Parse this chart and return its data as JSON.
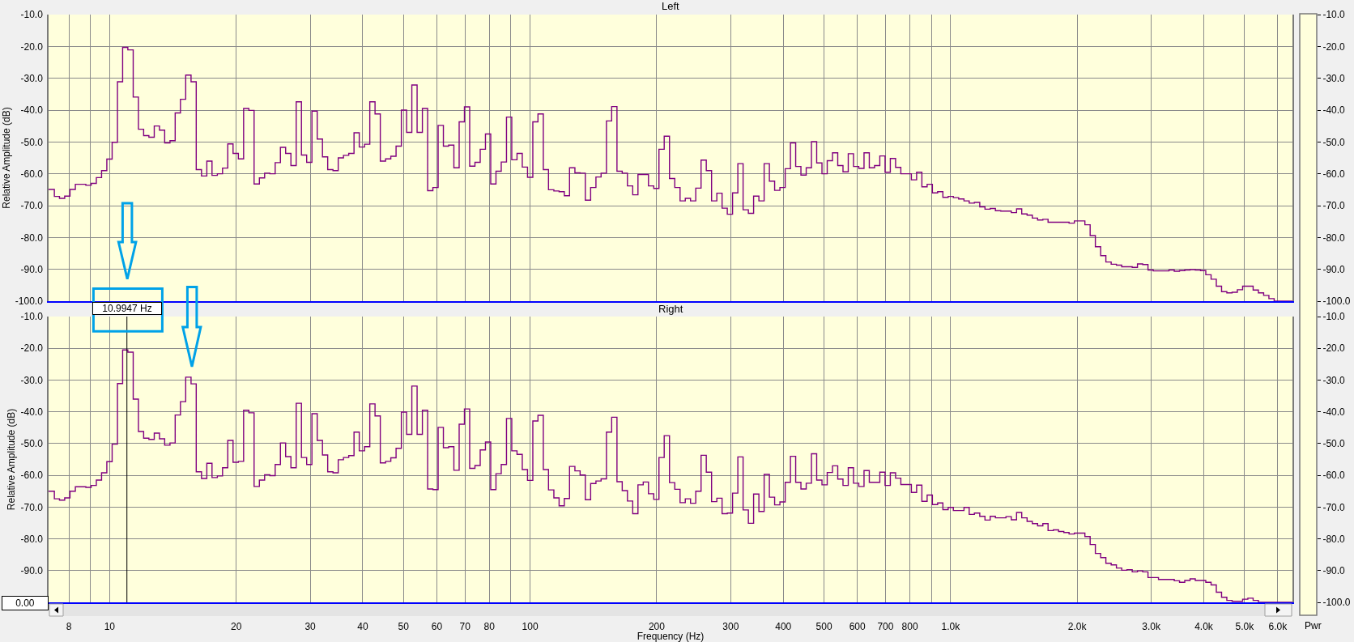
{
  "chart_data": [
    {
      "type": "step",
      "title": "Left",
      "ylabel": "Relative Amplitude (dB)",
      "color": "#800080",
      "log": "x",
      "grid": true,
      "tick_labels": "y",
      "xlim": [
        7.16,
        6500
      ],
      "xticks": [
        8,
        9,
        10,
        20,
        30,
        40,
        50,
        60,
        70,
        80,
        90,
        100,
        200,
        300,
        400,
        500,
        600,
        700,
        800,
        900,
        1000,
        2000,
        3000,
        4000,
        5000,
        6000
      ],
      "ylim": [
        -100,
        -10
      ],
      "yticks": [
        {
          "value": -10,
          "label": "-10.0"
        },
        {
          "value": -20,
          "label": "-20.0"
        },
        {
          "value": -30,
          "label": "-30.0"
        },
        {
          "value": -40,
          "label": "-40.0"
        },
        {
          "value": -50,
          "label": "-50.0"
        },
        {
          "value": -60,
          "label": "-60.0"
        },
        {
          "value": -70,
          "label": "-70.0"
        },
        {
          "value": -80,
          "label": "-80.0"
        },
        {
          "value": -90,
          "label": "-90.0"
        },
        {
          "value": -100,
          "label": "-100.0"
        }
      ],
      "y2lim": [
        -100,
        -10
      ],
      "y2ticks": [
        {
          "value": -10,
          "label": "-10.0"
        },
        {
          "value": -20,
          "label": "-20.0"
        },
        {
          "value": -30,
          "label": "-30.0"
        },
        {
          "value": -40,
          "label": "-40.0"
        },
        {
          "value": -50,
          "label": "-50.0"
        },
        {
          "value": -60,
          "label": "-60.0"
        },
        {
          "value": -70,
          "label": "-70.0"
        },
        {
          "value": -80,
          "label": "-80.0"
        },
        {
          "value": -90,
          "label": "-90.0"
        },
        {
          "value": -100,
          "label": "-100.0"
        }
      ],
      "x": [
        7.16,
        7.39,
        7.6,
        7.82,
        8.05,
        8.29,
        8.78,
        9.04,
        9.3,
        9.57,
        9.85,
        10.14,
        10.44,
        10.74,
        11.05,
        11.38,
        11.71,
        12.05,
        12.4,
        12.77,
        13.14,
        13.52,
        13.92,
        14.32,
        14.74,
        15.17,
        15.62,
        16.07,
        16.54,
        17.03,
        17.52,
        18.04,
        18.56,
        19.1,
        19.66,
        20.24,
        20.83,
        21.44,
        22.06,
        22.71,
        23.37,
        24.05,
        24.76,
        25.48,
        26.22,
        26.99,
        27.78,
        28.59,
        29.42,
        30.28,
        31.17,
        32.08,
        33.01,
        33.98,
        34.97,
        35.99,
        37.04,
        38.13,
        39.24,
        40.39,
        41.57,
        42.78,
        44.03,
        45.32,
        46.64,
        48.0,
        49.41,
        50.85,
        52.33,
        53.86,
        55.44,
        57.06,
        58.72,
        60.43,
        62.2,
        64.01,
        65.88,
        67.81,
        69.79,
        71.83,
        73.93,
        76.09,
        78.31,
        80.6,
        82.95,
        85.38,
        87.87,
        90.44,
        93.08,
        95.8,
        98.59,
        101.5,
        104.4,
        107.5,
        110.6,
        113.9,
        117.2,
        120.6,
        124.1,
        127.8,
        131.5,
        135.3,
        139.3,
        143.4,
        147.5,
        151.9,
        156.3,
        160.9,
        165.6,
        170.4,
        175.4,
        180.5,
        191.2,
        196.8,
        202.5,
        208.4,
        214.5,
        220.8,
        227.3,
        233.9,
        240.7,
        247.7,
        255.0,
        262.4,
        270.1,
        278.0,
        286.1,
        294.4,
        303.0,
        311.9,
        321.0,
        330.4,
        340.0,
        350.0,
        360.2,
        370.7,
        381.5,
        392.7,
        404.2,
        416.0,
        428.1,
        440.6,
        453.5,
        466.7,
        480.3,
        494.4,
        508.8,
        523.7,
        539.0,
        554.7,
        570.9,
        587.6,
        604.8,
        622.4,
        640.6,
        659.3,
        678.6,
        698.4,
        718.8,
        739.8,
        761.4,
        806.6,
        830.1,
        854.4,
        879.3,
        905.0,
        931.4,
        958.6,
        986.6,
        1015,
        1045,
        1076,
        1107,
        1139,
        1173,
        1207,
        1242,
        1278,
        1316,
        1394,
        1435,
        1476,
        1520,
        1564,
        1610,
        1657,
        1705,
        1913,
        1969,
        2086,
        2147,
        2209,
        2274,
        2340,
        2409,
        2479,
        2552,
        2703,
        2782,
        2863,
        2947,
        3033,
        3306,
        3403,
        3502,
        3604,
        3710,
        3818,
        3930,
        4044,
        4163,
        4284,
        4409,
        4538,
        4671,
        4807,
        4948,
        5241,
        5394,
        5552,
        5714,
        5881,
        6500
      ],
      "values": [
        -64.9,
        -67.1,
        -67.7,
        -67.0,
        -64.9,
        -63.3,
        -63.6,
        -63.0,
        -61.2,
        -59.0,
        -55.4,
        -50.1,
        -31.1,
        -20.3,
        -21.1,
        -35.9,
        -46.0,
        -48.0,
        -48.5,
        -45.0,
        -46.3,
        -50.3,
        -49.6,
        -40.9,
        -36.6,
        -29.0,
        -31.1,
        -58.7,
        -60.7,
        -56.0,
        -60.5,
        -60.0,
        -58.2,
        -50.6,
        -53.6,
        -55.3,
        -39.5,
        -40.1,
        -63.2,
        -61.3,
        -59.8,
        -60.0,
        -56.5,
        -51.7,
        -53.6,
        -57.4,
        -37.4,
        -54.1,
        -56.4,
        -40.3,
        -49.1,
        -54.7,
        -58.7,
        -59.0,
        -55.0,
        -54.2,
        -53.6,
        -47.1,
        -51.6,
        -50.7,
        -37.4,
        -41.2,
        -56.0,
        -55.3,
        -54.5,
        -51.3,
        -40.0,
        -47.0,
        -32.1,
        -47.0,
        -39.5,
        -65.3,
        -64.3,
        -44.8,
        -51.3,
        -51.0,
        -58.1,
        -43.7,
        -39.0,
        -57.6,
        -56.4,
        -52.3,
        -47.5,
        -63.2,
        -59.2,
        -56.3,
        -42.2,
        -55.6,
        -53.6,
        -57.9,
        -61.1,
        -43.7,
        -41.2,
        -58.7,
        -65.0,
        -65.4,
        -65.6,
        -66.9,
        -58.1,
        -59.7,
        -59.8,
        -68.3,
        -64.3,
        -61.0,
        -59.8,
        -43.4,
        -38.9,
        -59.2,
        -59.8,
        -63.8,
        -66.6,
        -60.2,
        -63.8,
        -64.6,
        -52.3,
        -48.2,
        -61.5,
        -64.3,
        -68.5,
        -67.7,
        -68.5,
        -64.5,
        -55.7,
        -59.0,
        -68.5,
        -66.1,
        -70.8,
        -72.7,
        -66.0,
        -56.8,
        -71.3,
        -72.4,
        -67.0,
        -68.5,
        -56.8,
        -62.3,
        -65.2,
        -64.3,
        -58.4,
        -50.3,
        -57.7,
        -60.4,
        -58.1,
        -49.9,
        -56.6,
        -60.0,
        -55.9,
        -53.4,
        -57.4,
        -59.4,
        -53.7,
        -57.7,
        -58.3,
        -53.4,
        -58.1,
        -57.4,
        -54.4,
        -59.5,
        -55.2,
        -58.0,
        -60.0,
        -61.9,
        -59.5,
        -64.1,
        -63.3,
        -66.0,
        -65.6,
        -67.4,
        -67.1,
        -67.5,
        -67.9,
        -68.5,
        -69.2,
        -69.0,
        -70.4,
        -71.1,
        -70.9,
        -71.6,
        -71.7,
        -72.2,
        -71.0,
        -72.6,
        -73.0,
        -73.9,
        -74.5,
        -74.3,
        -75.2,
        -75.5,
        -74.8,
        -76.0,
        -79.4,
        -82.9,
        -85.7,
        -87.7,
        -88.4,
        -88.7,
        -89.2,
        -89.4,
        -88.3,
        -88.5,
        -90.2,
        -90.5,
        -90.2,
        -90.6,
        -90.4,
        -90.2,
        -90.1,
        -90.2,
        -90.4,
        -91.7,
        -93.1,
        -95.3,
        -97.0,
        -97.4,
        -97.2,
        -96.4,
        -95.3,
        -96.5,
        -97.4,
        -98.2,
        -99.2,
        -100,
        -100
      ]
    },
    {
      "type": "step",
      "title": "Right",
      "xlabel": "Frequency (Hz)",
      "ylabel": "Relative Amplitude (dB)",
      "color": "#800080",
      "log": "x",
      "grid": true,
      "xlim": [
        7.16,
        6500
      ],
      "xticks": [
        8,
        {
          "value": 9,
          "label": null
        },
        10,
        20,
        30,
        40,
        50,
        60,
        70,
        80,
        {
          "value": 90,
          "label": null
        },
        100,
        200,
        300,
        400,
        500,
        600,
        700,
        800,
        {
          "value": 900,
          "label": null
        },
        {
          "value": 1000,
          "label": "1.0k"
        },
        {
          "value": 2000,
          "label": "2.0k"
        },
        {
          "value": 3000,
          "label": "3.0k"
        },
        {
          "value": 4000,
          "label": "4.0k"
        },
        {
          "value": 5000,
          "label": "5.0k"
        },
        {
          "value": 6000,
          "label": "6.0k"
        }
      ],
      "ylim": [
        -100,
        -10
      ],
      "yticks": [
        {
          "value": -10,
          "label": "-10.0"
        },
        {
          "value": -20,
          "label": "-20.0"
        },
        {
          "value": -30,
          "label": "-30.0"
        },
        {
          "value": -40,
          "label": "-40.0"
        },
        {
          "value": -50,
          "label": "-50.0"
        },
        {
          "value": -60,
          "label": "-60.0"
        },
        {
          "value": -70,
          "label": "-70.0"
        },
        {
          "value": -80,
          "label": "-80.0"
        },
        {
          "value": -90,
          "label": "-90.0"
        },
        {
          "value": -100,
          "label": null
        }
      ],
      "y2lim": [
        -100,
        -10
      ],
      "y2ticks": [
        {
          "value": -10,
          "label": "-10.0"
        },
        {
          "value": -20,
          "label": "-20.0"
        },
        {
          "value": -30,
          "label": "-30.0"
        },
        {
          "value": -40,
          "label": "-40.0"
        },
        {
          "value": -50,
          "label": "-50.0"
        },
        {
          "value": -60,
          "label": "-60.0"
        },
        {
          "value": -70,
          "label": "-70.0"
        },
        {
          "value": -80,
          "label": "-80.0"
        },
        {
          "value": -90,
          "label": "-90.0"
        },
        {
          "value": -100,
          "label": "-100.0"
        }
      ],
      "ref_lines": [
        {
          "axis": "x",
          "value": 10.9947,
          "label": "10.9947 Hz",
          "color": "#000000"
        }
      ],
      "annotations": [
        "0.00",
        "Pwr"
      ],
      "x": [
        7.16,
        7.39,
        7.6,
        7.82,
        8.05,
        8.29,
        8.78,
        9.04,
        9.3,
        9.57,
        9.85,
        10.14,
        10.44,
        10.74,
        11.05,
        11.38,
        11.71,
        12.05,
        12.4,
        12.77,
        13.14,
        13.52,
        13.92,
        14.32,
        14.74,
        15.17,
        15.62,
        16.07,
        16.54,
        17.03,
        17.52,
        18.04,
        18.56,
        19.1,
        19.66,
        20.24,
        20.83,
        21.44,
        22.06,
        22.71,
        23.37,
        24.05,
        24.76,
        25.48,
        26.22,
        26.99,
        27.78,
        28.59,
        29.42,
        30.28,
        31.17,
        32.08,
        33.01,
        33.98,
        34.97,
        35.99,
        37.04,
        38.13,
        39.24,
        40.39,
        41.57,
        42.78,
        44.03,
        45.32,
        46.64,
        48.0,
        49.41,
        50.85,
        52.33,
        53.86,
        55.44,
        57.06,
        58.72,
        60.43,
        62.2,
        64.01,
        65.88,
        67.81,
        69.79,
        71.83,
        73.93,
        76.09,
        78.31,
        80.6,
        82.95,
        85.38,
        87.87,
        90.44,
        93.08,
        95.8,
        98.59,
        101.5,
        104.4,
        107.5,
        110.6,
        113.9,
        117.2,
        120.6,
        124.1,
        127.8,
        131.5,
        135.3,
        139.3,
        143.4,
        147.5,
        151.9,
        156.3,
        160.9,
        165.6,
        170.4,
        175.4,
        180.5,
        185.8,
        191.2,
        196.8,
        202.5,
        208.4,
        214.5,
        220.8,
        227.3,
        233.9,
        240.7,
        247.7,
        255.0,
        262.4,
        270.1,
        278.0,
        286.1,
        294.4,
        303.0,
        311.9,
        321.0,
        330.4,
        340.0,
        350.0,
        360.2,
        370.7,
        381.5,
        392.7,
        404.2,
        416.0,
        428.1,
        440.6,
        453.5,
        466.7,
        480.3,
        494.4,
        508.8,
        523.7,
        539.0,
        554.7,
        570.9,
        587.6,
        604.8,
        622.4,
        640.6,
        678.6,
        698.4,
        718.8,
        739.8,
        761.4,
        806.6,
        830.1,
        854.4,
        879.3,
        905.0,
        931.4,
        958.6,
        986.6,
        1015,
        1076,
        1107,
        1139,
        1173,
        1207,
        1242,
        1278,
        1354,
        1394,
        1435,
        1476,
        1520,
        1564,
        1610,
        1657,
        1705,
        1755,
        1806,
        1859,
        1913,
        1969,
        2086,
        2147,
        2209,
        2274,
        2340,
        2409,
        2479,
        2552,
        2626,
        2703,
        2782,
        2863,
        2947,
        3121,
        3403,
        3502,
        3604,
        3710,
        3818,
        4044,
        4163,
        4284,
        4409,
        4538,
        4671,
        4948,
        5092,
        5241,
        5394,
        6500
      ],
      "values": [
        -65.0,
        -67.4,
        -67.8,
        -67.1,
        -65.0,
        -63.6,
        -63.8,
        -63.2,
        -61.5,
        -59.2,
        -55.7,
        -50.2,
        -31.1,
        -20.5,
        -21.2,
        -36.0,
        -46.2,
        -48.3,
        -48.7,
        -46.7,
        -48.5,
        -50.5,
        -49.8,
        -41.0,
        -36.8,
        -29.1,
        -31.2,
        -58.9,
        -61.0,
        -56.2,
        -60.7,
        -60.2,
        -57.6,
        -49.0,
        -55.9,
        -55.6,
        -39.5,
        -40.3,
        -63.5,
        -61.5,
        -59.8,
        -60.1,
        -56.6,
        -49.8,
        -54.1,
        -57.6,
        -37.3,
        -54.4,
        -56.6,
        -40.6,
        -49.0,
        -53.6,
        -58.9,
        -59.2,
        -55.1,
        -54.4,
        -53.8,
        -46.4,
        -52.3,
        -51.0,
        -37.5,
        -41.3,
        -56.1,
        -55.6,
        -54.5,
        -51.5,
        -40.1,
        -47.1,
        -31.9,
        -47.1,
        -39.5,
        -64.3,
        -64.5,
        -44.9,
        -51.3,
        -51.0,
        -58.4,
        -43.9,
        -39.1,
        -57.8,
        -56.9,
        -52.0,
        -49.5,
        -64.5,
        -59.5,
        -56.6,
        -42.1,
        -52.3,
        -53.4,
        -58.2,
        -61.6,
        -42.9,
        -41.1,
        -58.2,
        -64.6,
        -67.1,
        -69.6,
        -67.3,
        -57.2,
        -58.6,
        -59.9,
        -67.7,
        -62.6,
        -61.8,
        -61.1,
        -46.4,
        -41.7,
        -62.0,
        -64.8,
        -68.1,
        -72.1,
        -63.0,
        -62.1,
        -65.8,
        -67.6,
        -54.4,
        -47.5,
        -62.3,
        -64.4,
        -68.6,
        -67.4,
        -68.8,
        -65.0,
        -53.7,
        -59.0,
        -68.3,
        -67.2,
        -72.1,
        -71.9,
        -65.6,
        -54.2,
        -70.9,
        -75.1,
        -65.9,
        -71.4,
        -59.7,
        -66.9,
        -69.3,
        -68.4,
        -62.2,
        -54.0,
        -62.2,
        -64.3,
        -62.5,
        -53.2,
        -61.5,
        -63.0,
        -59.1,
        -57.0,
        -61.2,
        -63.2,
        -57.6,
        -62.5,
        -63.5,
        -58.5,
        -62.2,
        -59.0,
        -63.2,
        -59.2,
        -60.9,
        -62.9,
        -65.4,
        -63.1,
        -68.2,
        -66.2,
        -69.2,
        -68.7,
        -70.8,
        -70.1,
        -71.1,
        -70.1,
        -72.3,
        -71.9,
        -72.9,
        -74.1,
        -72.9,
        -73.4,
        -73.0,
        -74.0,
        -71.7,
        -73.4,
        -74.5,
        -75.2,
        -75.9,
        -75.2,
        -77.4,
        -77.2,
        -77.7,
        -78.0,
        -78.5,
        -78.2,
        -79.3,
        -81.8,
        -84.6,
        -85.9,
        -87.7,
        -88.2,
        -89.2,
        -89.9,
        -89.7,
        -90.4,
        -90.1,
        -90.4,
        -92.2,
        -92.8,
        -93.2,
        -93.7,
        -93.1,
        -92.6,
        -93.1,
        -93.7,
        -94.5,
        -96.8,
        -98.4,
        -99.4,
        -99.7,
        -99.0,
        -98.7,
        -99.4,
        -100,
        -100
      ]
    }
  ]
}
